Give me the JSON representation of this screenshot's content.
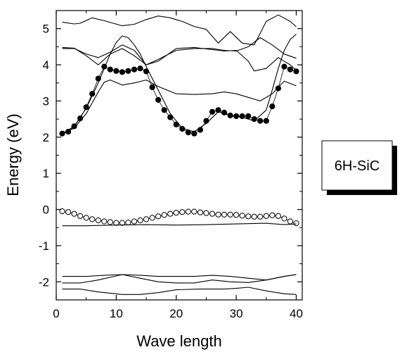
{
  "chart_data": {
    "type": "line",
    "xlabel": "Wave length",
    "ylabel": "Energy (eV)",
    "xlim": [
      0,
      41
    ],
    "ylim": [
      -2.5,
      5.5
    ],
    "xticks": [
      0,
      10,
      20,
      30,
      40
    ],
    "yticks": [
      -2,
      -1,
      0,
      1,
      2,
      3,
      4,
      5
    ],
    "annotation": "6H-SiC",
    "grid": false,
    "series": [
      {
        "style": "line",
        "x": [
          1,
          3,
          4,
          6,
          8,
          11,
          13,
          15,
          17,
          19,
          21,
          23,
          25,
          27,
          29,
          31,
          33,
          35,
          37,
          39,
          40
        ],
        "y": [
          5.18,
          5.13,
          5.15,
          5.3,
          5.22,
          5.08,
          5.12,
          5.25,
          5.35,
          5.3,
          5.2,
          5.06,
          4.98,
          4.6,
          4.92,
          4.6,
          4.55,
          5.2,
          5.38,
          5.2,
          5.05
        ]
      },
      {
        "style": "line",
        "x": [
          1,
          3,
          5,
          7,
          9,
          11,
          13,
          15,
          17,
          20,
          23,
          26,
          28,
          30,
          32,
          34,
          36,
          38,
          40
        ],
        "y": [
          4.48,
          4.46,
          4.25,
          4.0,
          4.3,
          4.45,
          4.25,
          4.0,
          4.15,
          4.4,
          4.45,
          4.45,
          4.4,
          4.38,
          4.5,
          4.75,
          4.55,
          4.3,
          4.18
        ]
      },
      {
        "style": "line",
        "x": [
          1,
          3,
          5,
          7,
          9,
          11,
          13,
          15,
          17,
          20,
          23,
          26,
          28,
          30,
          32,
          33,
          35,
          37,
          39,
          40
        ],
        "y": [
          4.45,
          4.45,
          4.3,
          4.2,
          4.35,
          4.55,
          4.4,
          4.0,
          4.1,
          4.45,
          4.48,
          4.42,
          4.38,
          4.4,
          4.1,
          3.83,
          3.9,
          4.2,
          4.0,
          3.85
        ]
      },
      {
        "style": "line",
        "x": [
          1,
          3,
          5,
          7,
          8,
          9,
          11,
          13,
          15,
          17,
          20,
          23,
          26,
          28,
          30,
          32,
          34,
          36,
          38,
          40
        ],
        "y": [
          2.1,
          2.25,
          2.65,
          3.25,
          3.52,
          3.58,
          3.44,
          3.5,
          3.58,
          3.4,
          3.2,
          3.18,
          3.2,
          3.25,
          3.2,
          3.1,
          3.0,
          3.2,
          3.55,
          3.42
        ]
      },
      {
        "style": "line",
        "x": [
          1,
          3,
          5,
          7,
          9,
          10,
          11,
          12,
          13,
          14,
          15,
          17,
          19,
          21,
          23,
          25,
          27,
          29,
          31,
          33,
          35,
          36,
          37,
          38,
          39,
          40
        ],
        "y": [
          2.1,
          2.3,
          2.8,
          3.5,
          4.3,
          4.62,
          4.8,
          4.75,
          4.55,
          4.3,
          3.95,
          3.3,
          2.65,
          2.25,
          2.15,
          2.38,
          2.7,
          2.6,
          2.55,
          2.45,
          2.75,
          3.3,
          3.9,
          4.4,
          4.7,
          4.85
        ]
      },
      {
        "style": "filled-markers",
        "x": [
          1,
          2,
          3,
          4,
          5,
          6,
          7,
          8,
          9,
          10,
          11,
          12,
          13,
          14,
          15,
          16,
          17,
          18,
          19,
          20,
          21,
          22,
          23,
          24,
          25,
          26,
          27,
          28,
          29,
          30,
          31,
          32,
          33,
          34,
          35,
          36,
          37,
          38,
          39,
          40
        ],
        "y": [
          2.1,
          2.15,
          2.3,
          2.52,
          2.83,
          3.2,
          3.62,
          3.95,
          3.87,
          3.83,
          3.8,
          3.83,
          3.87,
          3.9,
          3.82,
          3.38,
          3.03,
          2.75,
          2.55,
          2.35,
          2.23,
          2.13,
          2.1,
          2.2,
          2.45,
          2.7,
          2.75,
          2.68,
          2.6,
          2.58,
          2.58,
          2.58,
          2.5,
          2.45,
          2.45,
          2.85,
          3.35,
          3.95,
          3.87,
          3.82
        ]
      },
      {
        "style": "open-markers",
        "x": [
          1,
          2,
          3,
          4,
          5,
          6,
          7,
          8,
          9,
          10,
          11,
          12,
          13,
          14,
          15,
          16,
          17,
          18,
          19,
          20,
          21,
          22,
          23,
          24,
          25,
          26,
          27,
          28,
          29,
          30,
          31,
          32,
          33,
          34,
          35,
          36,
          37,
          38,
          39,
          40
        ],
        "y": [
          -0.05,
          -0.07,
          -0.12,
          -0.18,
          -0.23,
          -0.27,
          -0.3,
          -0.33,
          -0.35,
          -0.37,
          -0.37,
          -0.36,
          -0.33,
          -0.3,
          -0.27,
          -0.23,
          -0.19,
          -0.15,
          -0.12,
          -0.09,
          -0.07,
          -0.06,
          -0.06,
          -0.08,
          -0.1,
          -0.12,
          -0.14,
          -0.14,
          -0.14,
          -0.15,
          -0.17,
          -0.19,
          -0.2,
          -0.2,
          -0.18,
          -0.16,
          -0.18,
          -0.25,
          -0.33,
          -0.38
        ]
      },
      {
        "style": "line",
        "x": [
          1,
          5,
          10,
          15,
          20,
          25,
          30,
          35,
          38,
          40
        ],
        "y": [
          -0.45,
          -0.45,
          -0.43,
          -0.42,
          -0.43,
          -0.42,
          -0.4,
          -0.38,
          -0.42,
          -0.4
        ]
      },
      {
        "style": "line",
        "x": [
          1,
          5,
          8,
          11,
          14,
          17,
          20,
          23,
          26,
          29,
          32,
          35,
          38,
          40
        ],
        "y": [
          -1.85,
          -1.85,
          -1.82,
          -1.8,
          -1.82,
          -1.85,
          -1.85,
          -1.85,
          -1.82,
          -1.85,
          -1.9,
          -1.95,
          -1.85,
          -1.8
        ]
      },
      {
        "style": "line",
        "x": [
          1,
          4,
          7,
          11,
          14,
          17,
          20,
          23,
          26,
          29,
          32,
          35,
          38,
          40
        ],
        "y": [
          -2.03,
          -2.03,
          -1.95,
          -1.8,
          -1.9,
          -2.0,
          -2.03,
          -2.03,
          -1.95,
          -2.0,
          -2.02,
          -1.95,
          -1.85,
          -1.8
        ]
      },
      {
        "style": "line",
        "x": [
          1,
          4,
          7,
          11,
          14,
          17,
          20,
          24,
          28,
          30,
          32,
          35,
          38,
          40
        ],
        "y": [
          -2.2,
          -2.2,
          -2.28,
          -2.35,
          -2.35,
          -2.3,
          -2.22,
          -2.2,
          -2.2,
          -2.18,
          -2.15,
          -2.25,
          -2.33,
          -2.35
        ]
      }
    ]
  }
}
